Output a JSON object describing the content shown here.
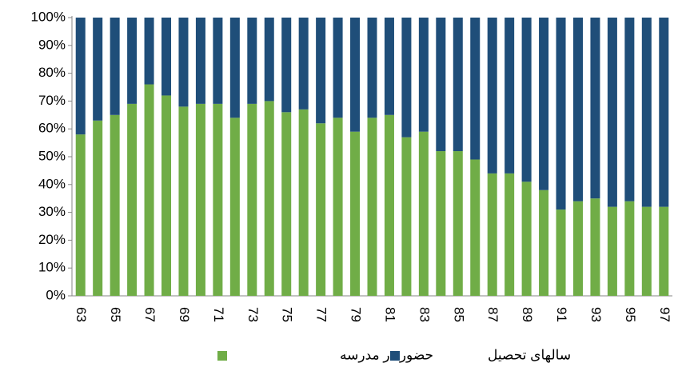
{
  "chart_data": {
    "type": "stacked_bar_100",
    "categories": [
      "63",
      null,
      "65",
      null,
      "67",
      null,
      "69",
      null,
      "71",
      null,
      "73",
      null,
      "75",
      null,
      "77",
      null,
      "79",
      null,
      "81",
      null,
      "83",
      null,
      "85",
      null,
      "87",
      null,
      "89",
      null,
      "91",
      null,
      "93",
      null,
      "95",
      null,
      "97"
    ],
    "series": [
      {
        "name": "حضور در مدرسه",
        "color": "#70ad47",
        "values": [
          58,
          63,
          65,
          69,
          76,
          72,
          68,
          69,
          69,
          64,
          69,
          70,
          66,
          67,
          62,
          64,
          59,
          64,
          65,
          57,
          59,
          52,
          52,
          49,
          44,
          44,
          41,
          38,
          31,
          34,
          35,
          32,
          34,
          32,
          32
        ]
      },
      {
        "name": "سالهای تحصیل",
        "color": "#1f4e79",
        "values": [
          42,
          37,
          35,
          31,
          24,
          28,
          32,
          31,
          31,
          36,
          31,
          30,
          34,
          33,
          38,
          36,
          41,
          36,
          35,
          43,
          41,
          48,
          48,
          51,
          56,
          56,
          59,
          62,
          69,
          66,
          65,
          68,
          66,
          68,
          68
        ]
      }
    ],
    "ylim": [
      0,
      100
    ],
    "yticks": [
      {
        "value": 0,
        "label": "0%"
      },
      {
        "value": 10,
        "label": "10%"
      },
      {
        "value": 20,
        "label": "20%"
      },
      {
        "value": 30,
        "label": "30%"
      },
      {
        "value": 40,
        "label": "40%"
      },
      {
        "value": 50,
        "label": "50%"
      },
      {
        "value": 60,
        "label": "60%"
      },
      {
        "value": 70,
        "label": "70%"
      },
      {
        "value": 80,
        "label": "80%"
      },
      {
        "value": 90,
        "label": "90%"
      },
      {
        "value": 100,
        "label": "100%"
      }
    ],
    "grid": false,
    "legend": "bottom"
  }
}
